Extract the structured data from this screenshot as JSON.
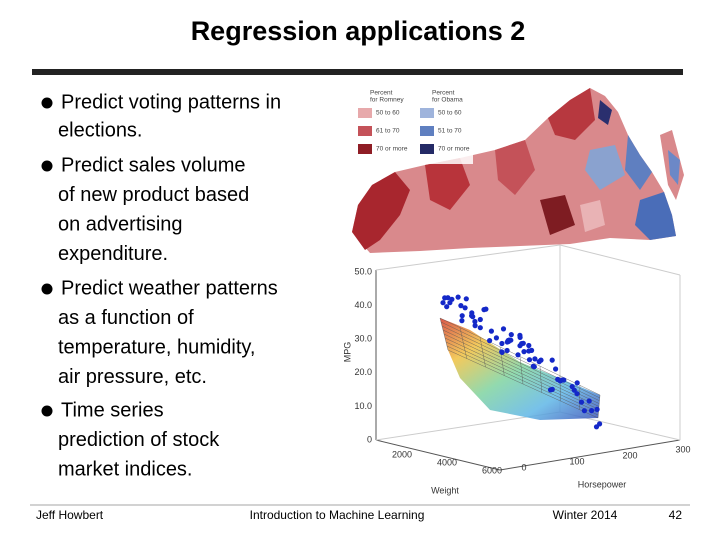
{
  "title": "Regression applications 2",
  "bullets": [
    [
      "Predict voting patterns in",
      "elections."
    ],
    [
      "Predict sales volume",
      "of new product based",
      "on advertising",
      "expenditure."
    ],
    [
      "Predict weather patterns",
      "as a function of",
      "temperature, humidity,",
      "air pressure, etc."
    ],
    [
      "Time series",
      "prediction of stock",
      "market indices."
    ]
  ],
  "map": {
    "legend": [
      {
        "title": [
          "Percent",
          "for Romney"
        ],
        "items": [
          "50 to 60",
          "61 to 70",
          "70 or more"
        ]
      },
      {
        "title": [
          "Percent",
          "for Obama"
        ],
        "items": [
          "50 to 60",
          "51 to 70",
          "70 or more"
        ]
      }
    ]
  },
  "plot": {
    "y_label": "MPG",
    "x_label": "Weight",
    "z_label": "Horsepower",
    "y_ticks": [
      "50.0",
      "40.0",
      "30.0",
      "20.0",
      "10.0",
      "0"
    ],
    "weight_ticks": [
      "2000",
      "4000",
      "6000"
    ],
    "hp_ticks": [
      "0",
      "100",
      "200",
      "300"
    ]
  },
  "footer": {
    "author": "Jeff Howbert",
    "course": "Introduction to Machine Learning",
    "term": "Winter 2014",
    "page": "42"
  }
}
